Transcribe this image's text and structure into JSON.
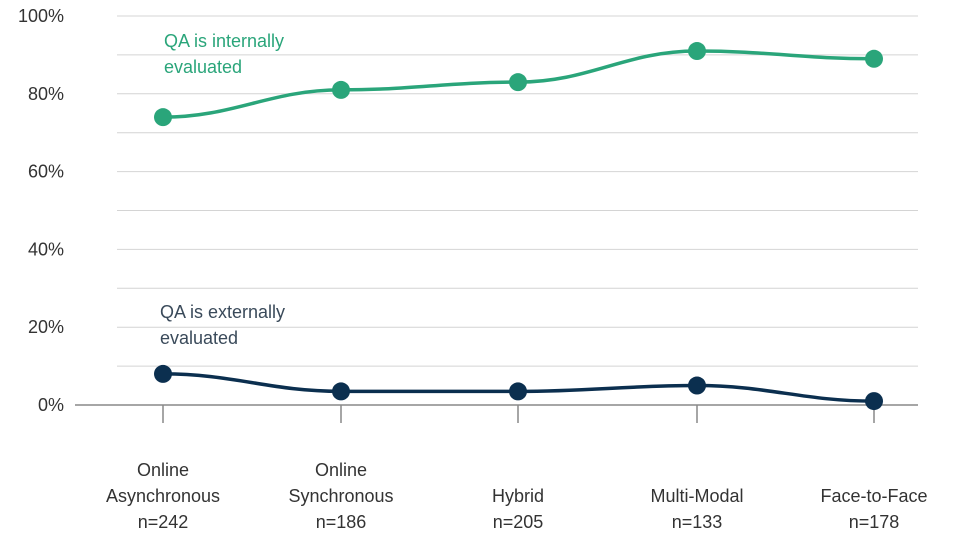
{
  "chart_data": {
    "type": "line",
    "categories": [
      [
        "Online",
        "Asynchronous",
        "n=242"
      ],
      [
        "Online",
        "Synchronous",
        "n=186"
      ],
      [
        "Hybrid",
        "n=205"
      ],
      [
        "Multi-Modal",
        "n=133"
      ],
      [
        "Face-to-Face",
        "n=178"
      ]
    ],
    "y_ticks": [
      "0%",
      "20%",
      "40%",
      "60%",
      "80%",
      "100%"
    ],
    "ylim": [
      0,
      100
    ],
    "grid": true,
    "series": [
      {
        "name": "QA is internally evaluated",
        "label_lines": [
          "QA is internally",
          "evaluated"
        ],
        "values": [
          74,
          81,
          83,
          91,
          89
        ],
        "color": "#2aa57a",
        "label_color": "#2aa57a"
      },
      {
        "name": "QA is externally evaluated",
        "label_lines": [
          "QA is externally",
          "evaluated"
        ],
        "values": [
          8,
          3.5,
          3.5,
          5,
          1
        ],
        "color": "#0b2f4f",
        "label_color": "#3a4a5a"
      }
    ]
  }
}
